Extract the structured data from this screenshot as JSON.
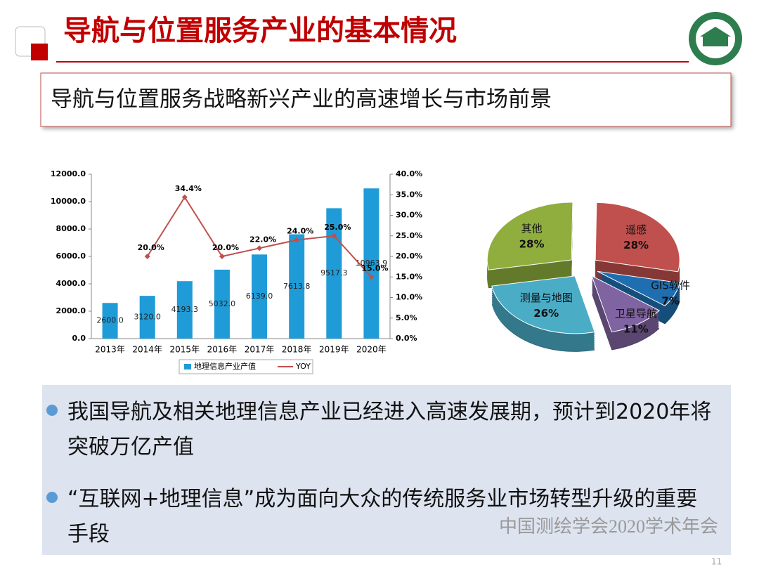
{
  "header": {
    "title": "导航与位置服务产业的基本情况",
    "subtitle": "导航与位置服务战略新兴产业的高速增长与市场前景"
  },
  "chart_data": [
    {
      "type": "bar-line",
      "categories": [
        "2013年",
        "2014年",
        "2015年",
        "2016年",
        "2017年",
        "2018年",
        "2019年",
        "2020年"
      ],
      "series": [
        {
          "name": "地理信息产业产值",
          "type": "bar",
          "color": "#1f9bd7",
          "values": [
            2600,
            3120,
            4193.3,
            5032,
            6139,
            7613.8,
            9517.3,
            10963.9
          ],
          "value_labels": [
            "2600.0",
            "3120.0",
            "4193.3",
            "5032.0",
            "6139.0",
            "7613.8",
            "9517.3",
            "10963.9"
          ]
        },
        {
          "name": "YOY",
          "type": "line",
          "axis": "y2",
          "color": "#c0504d",
          "values": [
            null,
            20,
            34.4,
            20,
            22,
            24,
            25,
            15
          ],
          "value_labels": [
            null,
            "20.0%",
            "34.4%",
            "20.0%",
            "22.0%",
            "24.0%",
            "25.0%",
            "15.0%"
          ]
        }
      ],
      "ylim": [
        0,
        12000
      ],
      "yticks": [
        {
          "value": 0,
          "label": "0.0"
        },
        {
          "value": 2000,
          "label": "2000.0"
        },
        {
          "value": 4000,
          "label": "4000.0"
        },
        {
          "value": 6000,
          "label": "6000.0"
        },
        {
          "value": 8000,
          "label": "8000.0"
        },
        {
          "value": 10000,
          "label": "10000.0"
        },
        {
          "value": 12000,
          "label": "12000.0"
        }
      ],
      "y2lim": [
        0,
        40
      ],
      "y2ticks": [
        {
          "value": 0,
          "label": "0.0%"
        },
        {
          "value": 5,
          "label": "5.0%"
        },
        {
          "value": 10,
          "label": "10.0%"
        },
        {
          "value": 15,
          "label": "15.0%"
        },
        {
          "value": 20,
          "label": "20.0%"
        },
        {
          "value": 25,
          "label": "25.0%"
        },
        {
          "value": 30,
          "label": "30.0%"
        },
        {
          "value": 35,
          "label": "35.0%"
        },
        {
          "value": 40,
          "label": "40.0%"
        }
      ],
      "legend": "bottom"
    },
    {
      "type": "pie",
      "categories": [
        "其他",
        "遥感",
        "GIS软件",
        "卫星导航",
        "测量与地图"
      ],
      "values": [
        28,
        28,
        7,
        11,
        26
      ],
      "value_labels": [
        "28%",
        "28%",
        "7%",
        "11%",
        "26%"
      ],
      "colors": [
        "#8fae3e",
        "#c0504d",
        "#1f6fb0",
        "#8064a2",
        "#4bacc6"
      ]
    }
  ],
  "bullets": [
    "我国导航及相关地理信息产业已经进入高速发展期，预计到2020年将突破万亿产值",
    "“互联网+地理信息”成为面向大众的传统服务业市场转型升级的重要手段"
  ],
  "watermark": "中国测绘学会2020学术年会",
  "page_number": "11"
}
